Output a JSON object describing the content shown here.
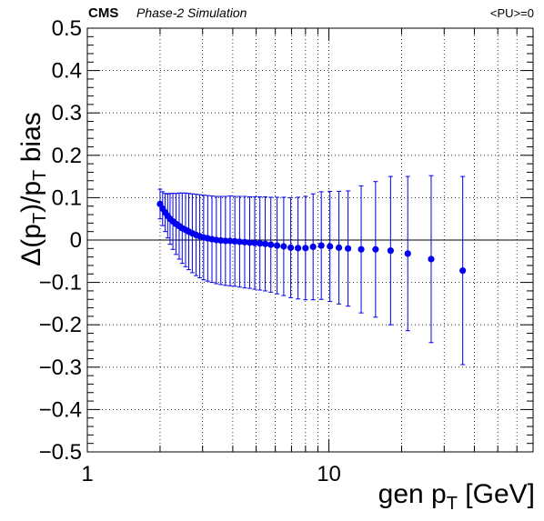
{
  "header": {
    "experiment": "CMS",
    "subtitle": "Phase-2 Simulation",
    "pileup": "<PU>=0"
  },
  "chart_data": {
    "type": "scatter",
    "xlabel": {
      "main": "gen p",
      "sub": "T",
      "tail": " [GeV]"
    },
    "ylabel": {
      "delta": "Δ(p",
      "sub1": "T",
      "mid": ")/p",
      "sub2": "T",
      "tail": " bias"
    },
    "xscale": "log",
    "xlim": [
      1,
      70
    ],
    "ylim": [
      -0.5,
      0.5
    ],
    "grid": true,
    "marker_color": "#0000ee",
    "x_tick_labels": [
      {
        "value": 1,
        "label": "1"
      },
      {
        "value": 10,
        "label": "10"
      }
    ],
    "y_tick_labels": [
      "0.5",
      "0.4",
      "0.3",
      "0.2",
      "0.1",
      "0",
      "−0.1",
      "−0.2",
      "−0.3",
      "−0.4",
      "−0.5"
    ],
    "y_ticks": [
      0.5,
      0.4,
      0.3,
      0.2,
      0.1,
      0,
      -0.1,
      -0.2,
      -0.3,
      -0.4,
      -0.5
    ],
    "points": [
      {
        "x": 2.0,
        "y": 0.085,
        "err": 0.035
      },
      {
        "x": 2.05,
        "y": 0.074,
        "err": 0.04
      },
      {
        "x": 2.1,
        "y": 0.065,
        "err": 0.045
      },
      {
        "x": 2.15,
        "y": 0.057,
        "err": 0.052
      },
      {
        "x": 2.2,
        "y": 0.05,
        "err": 0.06
      },
      {
        "x": 2.26,
        "y": 0.044,
        "err": 0.066
      },
      {
        "x": 2.33,
        "y": 0.038,
        "err": 0.072
      },
      {
        "x": 2.4,
        "y": 0.033,
        "err": 0.078
      },
      {
        "x": 2.47,
        "y": 0.028,
        "err": 0.083
      },
      {
        "x": 2.55,
        "y": 0.024,
        "err": 0.087
      },
      {
        "x": 2.63,
        "y": 0.02,
        "err": 0.09
      },
      {
        "x": 2.72,
        "y": 0.016,
        "err": 0.093
      },
      {
        "x": 2.82,
        "y": 0.012,
        "err": 0.096
      },
      {
        "x": 2.92,
        "y": 0.009,
        "err": 0.098
      },
      {
        "x": 3.03,
        "y": 0.006,
        "err": 0.1
      },
      {
        "x": 3.15,
        "y": 0.004,
        "err": 0.101
      },
      {
        "x": 3.28,
        "y": 0.002,
        "err": 0.102
      },
      {
        "x": 3.42,
        "y": 0.0,
        "err": 0.103
      },
      {
        "x": 3.57,
        "y": -0.001,
        "err": 0.104
      },
      {
        "x": 3.73,
        "y": -0.002,
        "err": 0.105
      },
      {
        "x": 3.9,
        "y": -0.002,
        "err": 0.106
      },
      {
        "x": 4.08,
        "y": -0.003,
        "err": 0.106
      },
      {
        "x": 4.27,
        "y": -0.004,
        "err": 0.107
      },
      {
        "x": 4.48,
        "y": -0.005,
        "err": 0.108
      },
      {
        "x": 4.7,
        "y": -0.006,
        "err": 0.108
      },
      {
        "x": 4.93,
        "y": -0.007,
        "err": 0.109
      },
      {
        "x": 5.18,
        "y": -0.008,
        "err": 0.11
      },
      {
        "x": 5.45,
        "y": -0.009,
        "err": 0.111
      },
      {
        "x": 5.75,
        "y": -0.011,
        "err": 0.112
      },
      {
        "x": 6.1,
        "y": -0.013,
        "err": 0.114
      },
      {
        "x": 6.5,
        "y": -0.015,
        "err": 0.116
      },
      {
        "x": 6.95,
        "y": -0.018,
        "err": 0.118
      },
      {
        "x": 7.45,
        "y": -0.019,
        "err": 0.12
      },
      {
        "x": 8.0,
        "y": -0.019,
        "err": 0.122
      },
      {
        "x": 8.6,
        "y": -0.016,
        "err": 0.125
      },
      {
        "x": 9.3,
        "y": -0.013,
        "err": 0.127
      },
      {
        "x": 10.1,
        "y": -0.015,
        "err": 0.13
      },
      {
        "x": 11.0,
        "y": -0.018,
        "err": 0.133
      },
      {
        "x": 12.0,
        "y": -0.02,
        "err": 0.136
      },
      {
        "x": 13.6,
        "y": -0.022,
        "err": 0.15
      },
      {
        "x": 15.6,
        "y": -0.022,
        "err": 0.16
      },
      {
        "x": 18.0,
        "y": -0.025,
        "err": 0.175
      },
      {
        "x": 21.2,
        "y": -0.032,
        "err": 0.182
      },
      {
        "x": 26.5,
        "y": -0.045,
        "err": 0.197
      },
      {
        "x": 35.8,
        "y": -0.072,
        "err": 0.222
      }
    ]
  }
}
